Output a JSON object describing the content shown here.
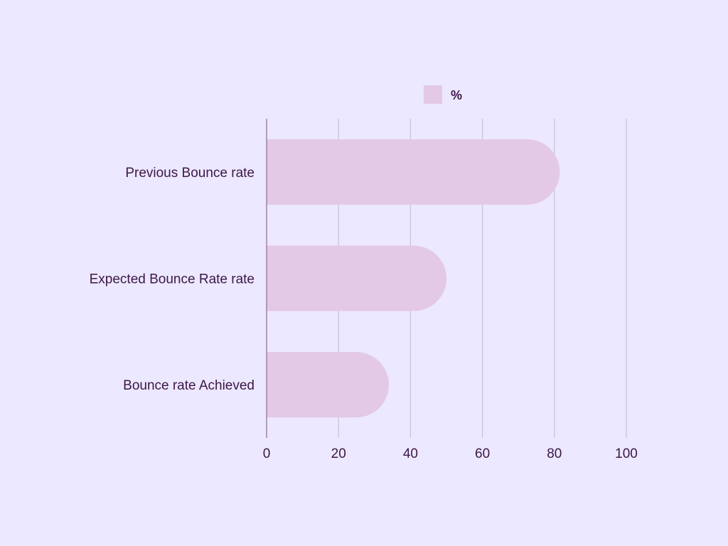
{
  "chart_data": {
    "type": "bar",
    "orientation": "horizontal",
    "categories": [
      "Previous Bounce rate",
      "Expected Bounce Rate rate",
      "Bounce rate Achieved"
    ],
    "series": [
      {
        "name": "%",
        "values": [
          81.5,
          50,
          34
        ]
      }
    ],
    "xlim": [
      0,
      100
    ],
    "xticks": [
      0,
      20,
      40,
      60,
      80,
      100
    ],
    "grid": true,
    "legend_position": "top-center",
    "colors": {
      "background": "#ECE8FF",
      "bar": "#E3C9E6",
      "grid": "#C9C1DC",
      "axis": "#8E6A93",
      "text": "#3D1748"
    }
  }
}
